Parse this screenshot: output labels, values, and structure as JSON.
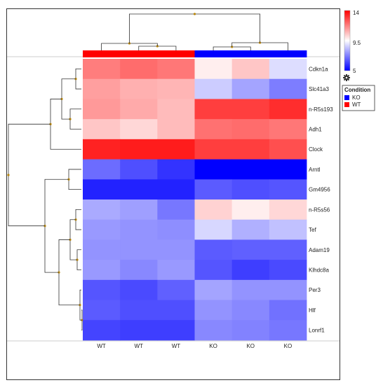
{
  "chart_data": {
    "type": "heatmap",
    "title": "",
    "rows": [
      "Cdkn1a",
      "Slc41a3",
      "n-R5s193",
      "Adh1",
      "Clock",
      "Arntl",
      "Gm4956",
      "n-R5s56",
      "Tef",
      "Adam19",
      "Klhdc8a",
      "Per3",
      "Hlf",
      "Lonrf1"
    ],
    "columns": [
      "WT",
      "WT",
      "WT",
      "KO",
      "KO",
      "KO"
    ],
    "column_groups": [
      "WT",
      "WT",
      "WT",
      "KO",
      "KO",
      "KO"
    ],
    "values": [
      [
        11.8,
        12.1,
        11.9,
        9.8,
        10.5,
        8.9
      ],
      [
        11.2,
        10.9,
        10.8,
        8.6,
        7.9,
        7.2
      ],
      [
        11.3,
        11.0,
        10.7,
        12.9,
        12.9,
        13.2
      ],
      [
        10.5,
        10.2,
        10.7,
        12.0,
        12.1,
        11.9
      ],
      [
        13.4,
        13.5,
        13.5,
        12.9,
        12.9,
        12.6
      ],
      [
        6.9,
        6.4,
        5.9,
        5.0,
        5.0,
        5.0
      ],
      [
        5.6,
        5.6,
        5.6,
        6.6,
        6.4,
        6.5
      ],
      [
        8.0,
        7.8,
        7.1,
        10.3,
        9.8,
        10.2
      ],
      [
        7.7,
        7.6,
        7.5,
        8.8,
        8.1,
        8.4
      ],
      [
        7.6,
        7.6,
        7.6,
        6.6,
        6.7,
        6.7
      ],
      [
        7.7,
        7.4,
        7.7,
        6.5,
        6.1,
        6.3
      ],
      [
        6.5,
        6.3,
        6.7,
        7.9,
        7.6,
        7.6
      ],
      [
        6.6,
        6.4,
        6.4,
        7.6,
        7.4,
        7.0
      ],
      [
        6.2,
        6.1,
        6.1,
        7.4,
        7.3,
        7.1
      ]
    ],
    "color_scale": {
      "min": 5,
      "mid": 9.5,
      "max": 14,
      "low_color": "#0000ff",
      "mid_color": "#ffffff",
      "high_color": "#ff0000"
    },
    "colorbar_ticks": [
      "14",
      "9.5",
      "5"
    ],
    "legend": {
      "title": "Condition",
      "items": [
        {
          "label": "KO",
          "color": "#0000ff"
        },
        {
          "label": "WT",
          "color": "#ff0000"
        }
      ]
    },
    "icons": {
      "colorbar_settings": "gear-icon"
    }
  }
}
